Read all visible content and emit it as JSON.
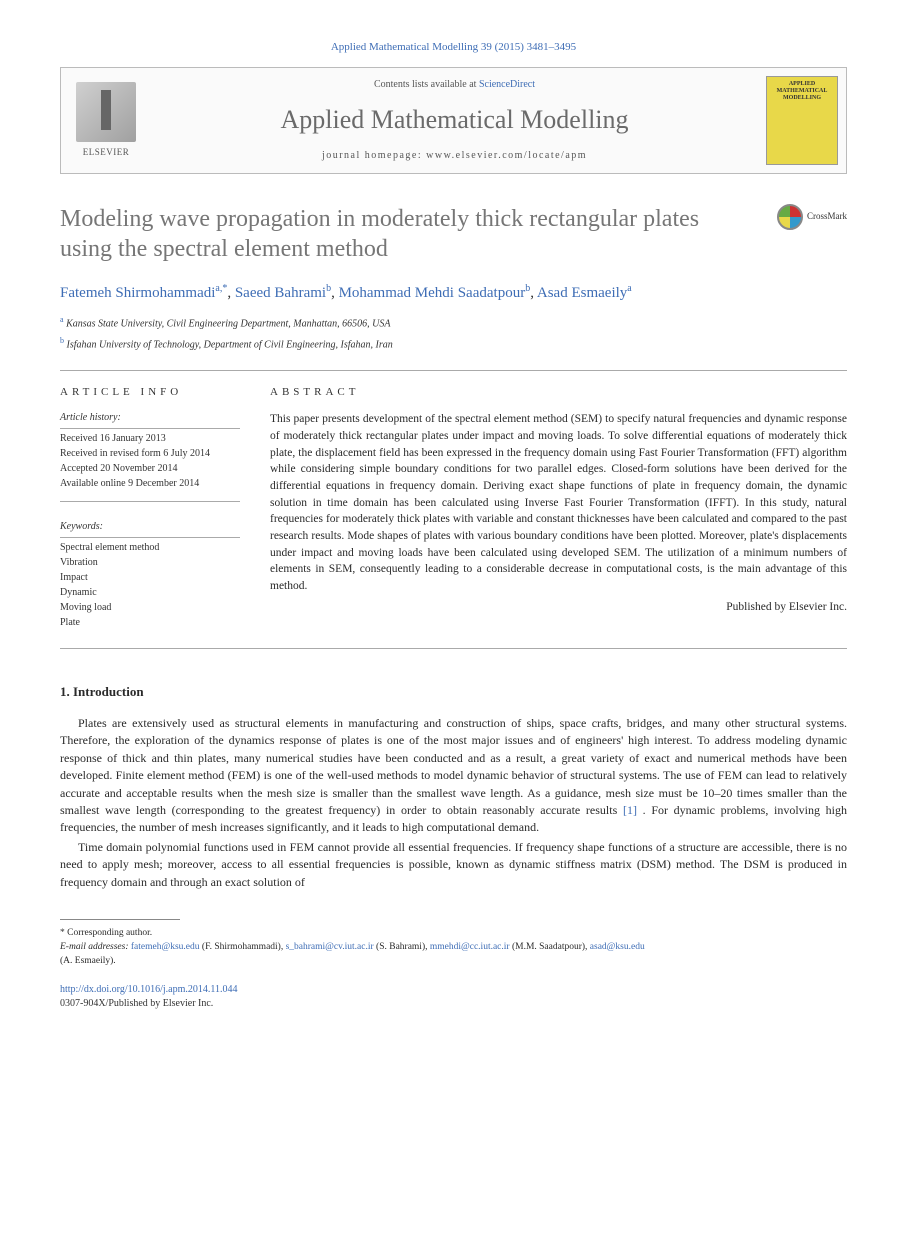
{
  "header": {
    "citation": "Applied Mathematical Modelling 39 (2015) 3481–3495",
    "contents_prefix": "Contents lists available at ",
    "contents_link": "ScienceDirect",
    "journal_name": "Applied Mathematical Modelling",
    "homepage_label": "journal homepage: www.elsevier.com/locate/apm",
    "elsevier": "ELSEVIER",
    "cover_title": "APPLIED MATHEMATICAL MODELLING"
  },
  "paper": {
    "title": "Modeling wave propagation in moderately thick rectangular plates using the spectral element method",
    "crossmark": "CrossMark"
  },
  "authors": {
    "a1_name": "Fatemeh Shirmohammadi",
    "a1_sup": "a,*",
    "a2_name": "Saeed Bahrami",
    "a2_sup": "b",
    "a3_name": "Mohammad Mehdi Saadatpour",
    "a3_sup": "b",
    "a4_name": "Asad Esmaeily",
    "a4_sup": "a"
  },
  "affiliations": {
    "a_sup": "a",
    "a_text": "Kansas State University, Civil Engineering Department, Manhattan, 66506, USA",
    "b_sup": "b",
    "b_text": "Isfahan University of Technology, Department of Civil Engineering, Isfahan, Iran"
  },
  "article_info": {
    "header": "ARTICLE INFO",
    "history_label": "Article history:",
    "history": {
      "received": "Received 16 January 2013",
      "revised": "Received in revised form 6 July 2014",
      "accepted": "Accepted 20 November 2014",
      "online": "Available online 9 December 2014"
    },
    "keywords_label": "Keywords:",
    "keywords": {
      "k1": "Spectral element method",
      "k2": "Vibration",
      "k3": "Impact",
      "k4": "Dynamic",
      "k5": "Moving load",
      "k6": "Plate"
    }
  },
  "abstract": {
    "header": "ABSTRACT",
    "text": "This paper presents development of the spectral element method (SEM) to specify natural frequencies and dynamic response of moderately thick rectangular plates under impact and moving loads. To solve differential equations of moderately thick plate, the displacement field has been expressed in the frequency domain using Fast Fourier Transformation (FFT) algorithm while considering simple boundary conditions for two parallel edges. Closed-form solutions have been derived for the differential equations in frequency domain. Deriving exact shape functions of plate in frequency domain, the dynamic solution in time domain has been calculated using Inverse Fast Fourier Transformation (IFFT). In this study, natural frequencies for moderately thick plates with variable and constant thicknesses have been calculated and compared to the past research results. Mode shapes of plates with various boundary conditions have been plotted. Moreover, plate's displacements under impact and moving loads have been calculated using developed SEM. The utilization of a minimum numbers of elements in SEM, consequently leading to a considerable decrease in computational costs, is the main advantage of this method.",
    "publisher": "Published by Elsevier Inc."
  },
  "sections": {
    "intro_title": "1. Introduction",
    "intro_p1": "Plates are extensively used as structural elements in manufacturing and construction of ships, space crafts, bridges, and many other structural systems. Therefore, the exploration of the dynamics response of plates is one of the most major issues and of engineers' high interest. To address modeling dynamic response of thick and thin plates, many numerical studies have been conducted and as a result, a great variety of exact and numerical methods have been developed. Finite element method (FEM) is one of the well-used methods to model dynamic behavior of structural systems. The use of FEM can lead to relatively accurate and acceptable results when the mesh size is smaller than the smallest wave length. As a guidance, mesh size must be 10–20 times smaller than the smallest wave length (corresponding to the greatest frequency) in order to obtain reasonably accurate results ",
    "intro_ref1": "[1]",
    "intro_p1_cont": ". For dynamic problems, involving high frequencies, the number of mesh increases significantly, and it leads to high computational demand.",
    "intro_p2": "Time domain polynomial functions used in FEM cannot provide all essential frequencies. If frequency shape functions of a structure are accessible, there is no need to apply mesh; moreover, access to all essential frequencies is possible, known as dynamic stiffness matrix (DSM) method. The DSM is produced in frequency domain and through an exact solution of"
  },
  "footnotes": {
    "corresponding_marker": "*",
    "corresponding_text": "Corresponding author.",
    "email_label": "E-mail addresses: ",
    "e1": "fatemeh@ksu.edu",
    "e1_name": " (F. Shirmohammadi), ",
    "e2": "s_bahrami@cv.iut.ac.ir",
    "e2_name": " (S. Bahrami), ",
    "e3": "mmehdi@cc.iut.ac.ir",
    "e3_name": " (M.M. Saadatpour), ",
    "e4": "asad@ksu.edu",
    "e4_name": "(A. Esmaeily)."
  },
  "doi": {
    "link": "http://dx.doi.org/10.1016/j.apm.2014.11.044",
    "issn": "0307-904X/Published by Elsevier Inc."
  },
  "colors": {
    "link": "#3e6db5",
    "text": "#2a2a2a",
    "title_gray": "#767676",
    "cover_yellow": "#e8d849"
  }
}
